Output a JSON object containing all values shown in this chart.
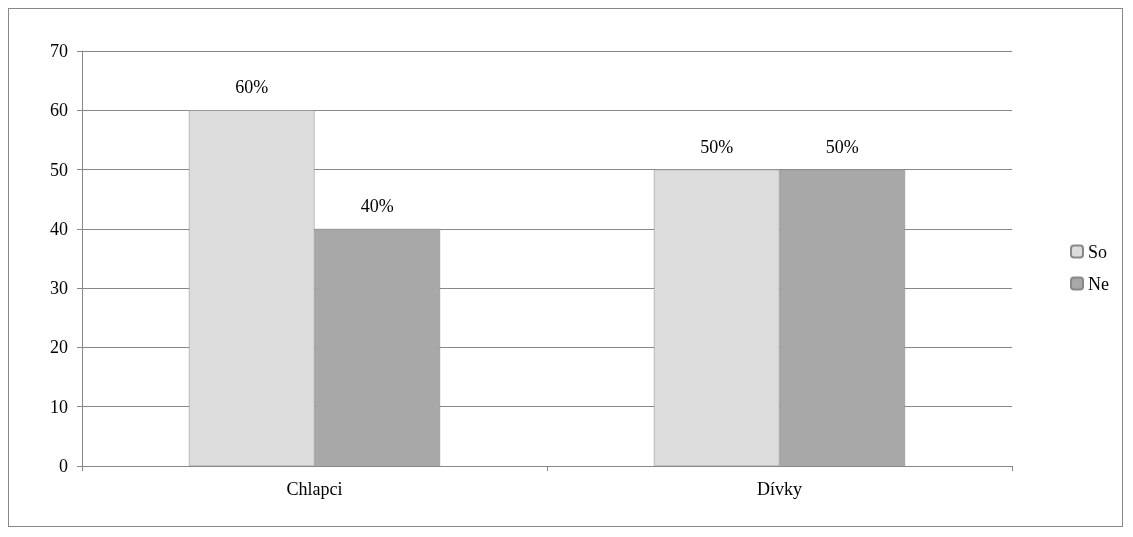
{
  "chart_data": {
    "type": "bar",
    "categories": [
      "Chlapci",
      "Dívky"
    ],
    "series": [
      {
        "name": "So",
        "color": "#dcdcdc",
        "values": [
          60,
          50
        ],
        "value_labels": [
          "60%",
          "50%"
        ]
      },
      {
        "name": "Ne",
        "color": "#a8a8a8",
        "values": [
          40,
          50
        ],
        "value_labels": [
          "40%",
          "50%"
        ]
      }
    ],
    "ylim": [
      0,
      70
    ],
    "yticks": [
      0,
      10,
      20,
      30,
      40,
      50,
      60,
      70
    ],
    "grid": "y",
    "legend": "right"
  }
}
